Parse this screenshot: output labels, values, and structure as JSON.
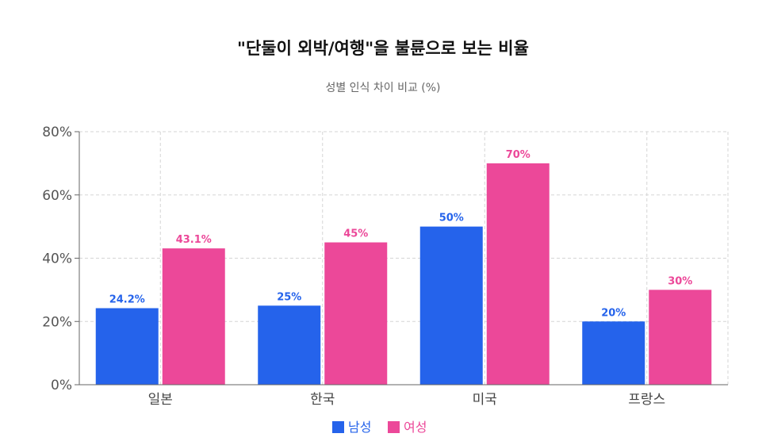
{
  "chart_data": {
    "type": "bar",
    "title": "\"단둘이 외박/여행\"을 불륜으로 보는 비율",
    "subtitle": "성별 인식 차이 비교 (%)",
    "categories": [
      "일본",
      "한국",
      "미국",
      "프랑스"
    ],
    "series": [
      {
        "name": "남성",
        "color": "#2563eb",
        "values": [
          24.2,
          25,
          50,
          20
        ],
        "labels": [
          "24.2%",
          "25%",
          "50%",
          "20%"
        ]
      },
      {
        "name": "여성",
        "color": "#ec4899",
        "values": [
          43.1,
          45,
          70,
          30
        ],
        "labels": [
          "43.1%",
          "45%",
          "70%",
          "30%"
        ]
      }
    ],
    "ylim": [
      0,
      80
    ],
    "yticks": [
      0,
      20,
      40,
      60,
      80
    ],
    "ytick_labels": [
      "0%",
      "20%",
      "40%",
      "60%",
      "80%"
    ],
    "grid": true,
    "legend_position": "bottom"
  }
}
